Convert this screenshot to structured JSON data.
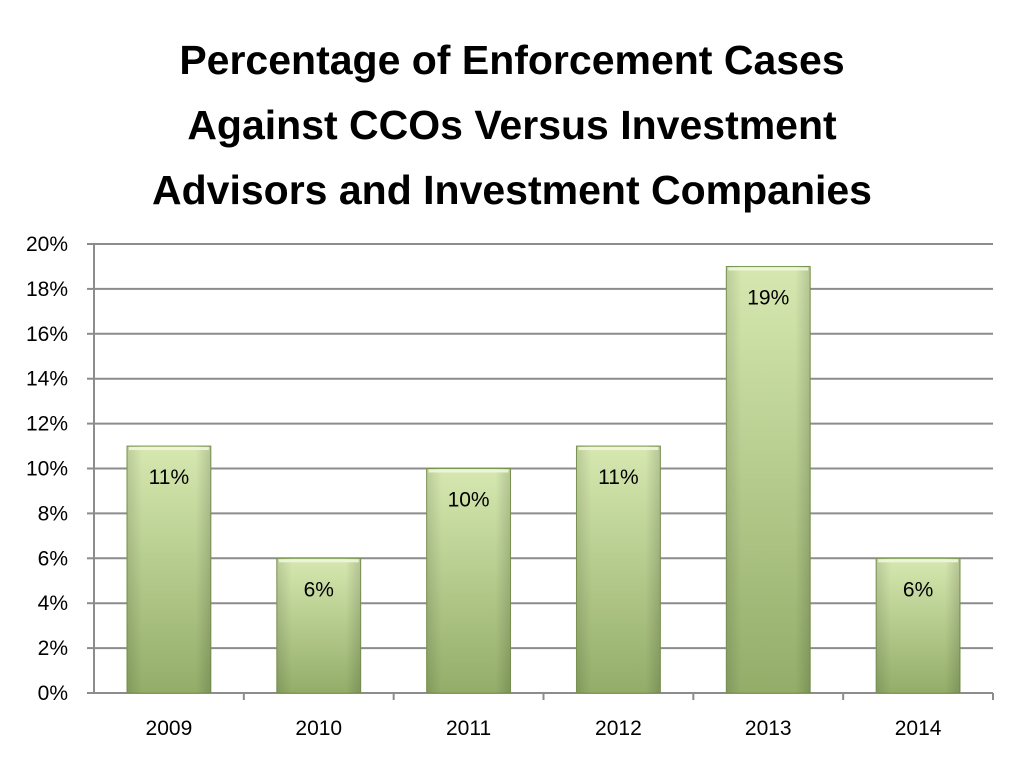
{
  "chart_data": {
    "type": "bar",
    "title": [
      "Percentage of Enforcement Cases",
      "Against CCOs Versus Investment",
      "Advisors and Investment Companies"
    ],
    "categories": [
      "2009",
      "2010",
      "2011",
      "2012",
      "2013",
      "2014"
    ],
    "values": [
      11,
      6,
      10,
      11,
      19,
      6
    ],
    "data_labels": [
      "11%",
      "6%",
      "10%",
      "11%",
      "19%",
      "6%"
    ],
    "xlabel": "",
    "ylabel": "",
    "ylim": [
      0,
      20
    ],
    "yticks": [
      0,
      2,
      4,
      6,
      8,
      10,
      12,
      14,
      16,
      18,
      20
    ],
    "ytick_labels": [
      "0%",
      "2%",
      "4%",
      "6%",
      "8%",
      "10%",
      "12%",
      "14%",
      "16%",
      "18%",
      "20%"
    ],
    "grid": true,
    "legend": "none",
    "colors": {
      "bar_light": "#d6e8b0",
      "bar_mid": "#b3cf85",
      "bar_dark": "#8ea866",
      "bar_edge": "#7f9a55",
      "grid": "#8c8c8c",
      "axis": "#8c8c8c"
    }
  }
}
